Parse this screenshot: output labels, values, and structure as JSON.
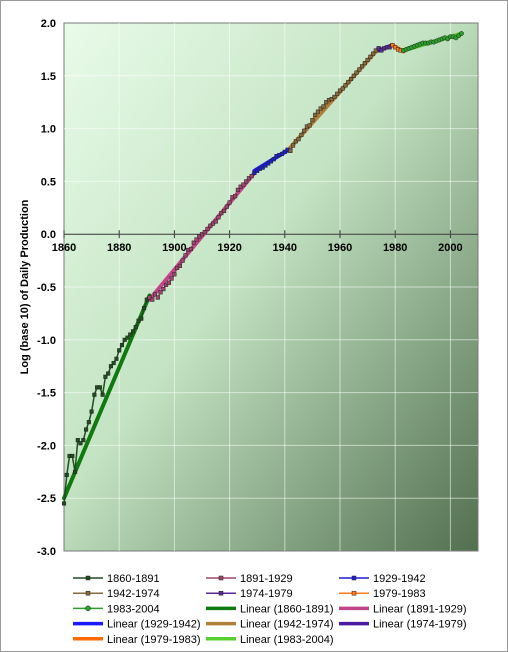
{
  "chart_data": {
    "type": "line",
    "title": "",
    "xlabel": "",
    "ylabel": "Log (base 10) of Daily Production",
    "xlim": [
      1860,
      2010
    ],
    "ylim": [
      -3.0,
      2.0
    ],
    "x_ticks": [
      "1860",
      "1880",
      "1900",
      "1920",
      "1940",
      "1960",
      "1980",
      "2000"
    ],
    "y_ticks": [
      "2.0",
      "1.5",
      "1.0",
      "0.5",
      "0.0",
      "-0.5",
      "-1.0",
      "-1.5",
      "-2.0",
      "-2.5",
      "-3.0"
    ],
    "grid": true,
    "legend_position": "bottom",
    "series": [
      {
        "name": "1860-1891",
        "color": "#1f4f1f",
        "marker": "square",
        "x": [
          1860,
          1861,
          1862,
          1863,
          1864,
          1865,
          1866,
          1867,
          1868,
          1869,
          1870,
          1871,
          1872,
          1873,
          1874,
          1875,
          1876,
          1877,
          1878,
          1879,
          1880,
          1881,
          1882,
          1883,
          1884,
          1885,
          1886,
          1887,
          1888,
          1889,
          1890,
          1891
        ],
        "y": [
          -2.55,
          -2.28,
          -2.1,
          -2.1,
          -2.25,
          -1.95,
          -1.98,
          -1.95,
          -1.85,
          -1.78,
          -1.68,
          -1.52,
          -1.45,
          -1.45,
          -1.52,
          -1.35,
          -1.32,
          -1.25,
          -1.22,
          -1.18,
          -1.1,
          -1.05,
          -1.0,
          -0.98,
          -0.95,
          -0.92,
          -0.88,
          -0.82,
          -0.8,
          -0.7,
          -0.62,
          -0.6
        ]
      },
      {
        "name": "1891-1929",
        "color": "#a0466e",
        "marker": "square",
        "x": [
          1891,
          1892,
          1893,
          1894,
          1895,
          1896,
          1897,
          1898,
          1899,
          1900,
          1901,
          1902,
          1903,
          1904,
          1905,
          1906,
          1907,
          1908,
          1909,
          1910,
          1911,
          1912,
          1913,
          1914,
          1915,
          1916,
          1917,
          1918,
          1919,
          1920,
          1921,
          1922,
          1923,
          1924,
          1925,
          1926,
          1927,
          1928,
          1929
        ],
        "y": [
          -0.6,
          -0.62,
          -0.57,
          -0.6,
          -0.55,
          -0.52,
          -0.48,
          -0.46,
          -0.42,
          -0.38,
          -0.32,
          -0.3,
          -0.25,
          -0.2,
          -0.15,
          -0.14,
          -0.08,
          -0.05,
          -0.02,
          0.0,
          0.02,
          0.05,
          0.08,
          0.1,
          0.12,
          0.16,
          0.2,
          0.22,
          0.26,
          0.3,
          0.35,
          0.36,
          0.42,
          0.45,
          0.47,
          0.5,
          0.53,
          0.55,
          0.58
        ]
      },
      {
        "name": "1929-1942",
        "color": "#1f1fd0",
        "marker": "square",
        "x": [
          1929,
          1930,
          1931,
          1932,
          1933,
          1934,
          1935,
          1936,
          1937,
          1938,
          1939,
          1940,
          1941,
          1942
        ],
        "y": [
          0.58,
          0.6,
          0.62,
          0.63,
          0.65,
          0.67,
          0.69,
          0.71,
          0.74,
          0.75,
          0.76,
          0.78,
          0.8,
          0.79
        ]
      },
      {
        "name": "1942-1974",
        "color": "#8a6a3a",
        "marker": "square",
        "x": [
          1942,
          1943,
          1944,
          1945,
          1946,
          1947,
          1948,
          1949,
          1950,
          1951,
          1952,
          1953,
          1954,
          1955,
          1956,
          1957,
          1958,
          1959,
          1960,
          1961,
          1962,
          1963,
          1964,
          1965,
          1966,
          1967,
          1968,
          1969,
          1970,
          1971,
          1972,
          1973,
          1974
        ],
        "y": [
          0.79,
          0.84,
          0.88,
          0.9,
          0.94,
          0.98,
          1.02,
          1.03,
          1.08,
          1.13,
          1.16,
          1.19,
          1.21,
          1.25,
          1.27,
          1.28,
          1.3,
          1.33,
          1.36,
          1.38,
          1.41,
          1.44,
          1.47,
          1.5,
          1.53,
          1.56,
          1.59,
          1.62,
          1.65,
          1.68,
          1.71,
          1.74,
          1.76
        ]
      },
      {
        "name": "1974-1979",
        "color": "#5a2a9a",
        "marker": "square",
        "x": [
          1974,
          1975,
          1976,
          1977,
          1978,
          1979
        ],
        "y": [
          1.76,
          1.74,
          1.76,
          1.77,
          1.77,
          1.79
        ]
      },
      {
        "name": "1979-1983",
        "color": "#ff7a1a",
        "marker": "square",
        "x": [
          1979,
          1980,
          1981,
          1982,
          1983
        ],
        "y": [
          1.79,
          1.77,
          1.75,
          1.74,
          1.74
        ]
      },
      {
        "name": "1983-2004",
        "color": "#2aa02a",
        "marker": "circle",
        "x": [
          1983,
          1984,
          1985,
          1986,
          1987,
          1988,
          1989,
          1990,
          1991,
          1992,
          1993,
          1994,
          1995,
          1996,
          1997,
          1998,
          1999,
          2000,
          2001,
          2002,
          2003,
          2004
        ],
        "y": [
          1.74,
          1.75,
          1.76,
          1.77,
          1.78,
          1.79,
          1.8,
          1.81,
          1.81,
          1.81,
          1.82,
          1.82,
          1.83,
          1.84,
          1.85,
          1.86,
          1.85,
          1.87,
          1.87,
          1.86,
          1.88,
          1.9
        ]
      }
    ],
    "trendlines": [
      {
        "name": "Linear (1860-1891)",
        "color": "#0f7a0f",
        "x": [
          1860,
          1891
        ],
        "y": [
          -2.5,
          -0.58
        ]
      },
      {
        "name": "Linear (1891-1929)",
        "color": "#c2458a",
        "x": [
          1891,
          1929
        ],
        "y": [
          -0.62,
          0.58
        ]
      },
      {
        "name": "Linear (1929-1942)",
        "color": "#1a1aff",
        "x": [
          1929,
          1942
        ],
        "y": [
          0.6,
          0.81
        ]
      },
      {
        "name": "Linear (1942-1974)",
        "color": "#b0803a",
        "x": [
          1942,
          1974
        ],
        "y": [
          0.82,
          1.76
        ]
      },
      {
        "name": "Linear (1974-1979)",
        "color": "#4a1aa0",
        "x": [
          1974,
          1979
        ],
        "y": [
          1.74,
          1.79
        ]
      },
      {
        "name": "Linear (1979-1983)",
        "color": "#ff6a00",
        "x": [
          1979,
          1983
        ],
        "y": [
          1.79,
          1.73
        ]
      },
      {
        "name": "Linear (1983-2004)",
        "color": "#55d030",
        "x": [
          1983,
          2004
        ],
        "y": [
          1.74,
          1.9
        ]
      }
    ]
  }
}
